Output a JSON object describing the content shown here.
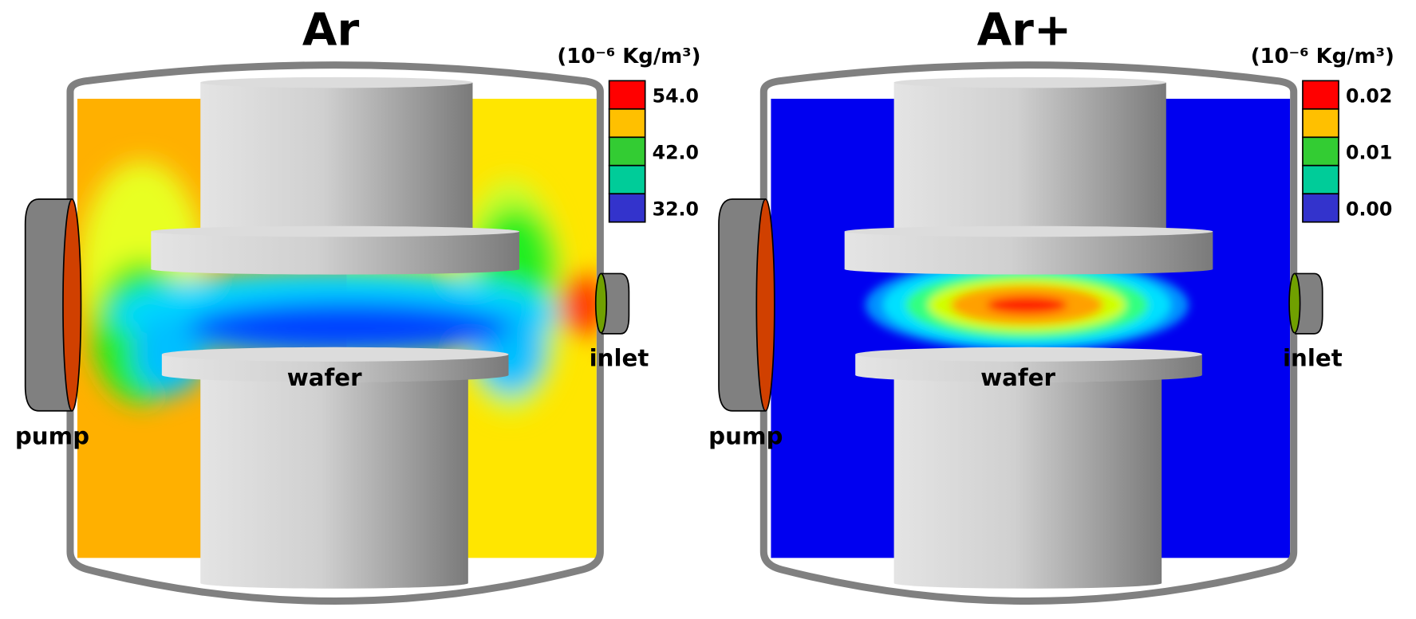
{
  "panels": [
    {
      "title": "Ar",
      "unit": "(10⁻⁶ Kg/m³)",
      "field": "Ar",
      "legend": {
        "colors": [
          "#ff0000",
          "#ffc000",
          "#33cc33",
          "#00cc99",
          "#3333cc"
        ],
        "labels": [
          "54.0",
          "42.0",
          "32.0"
        ]
      },
      "labels": {
        "pump": "pump",
        "inlet": "inlet",
        "wafer": "wafer"
      }
    },
    {
      "title": "Ar+",
      "unit": "(10⁻⁶ Kg/m³)",
      "field": "Ar+",
      "legend": {
        "colors": [
          "#ff0000",
          "#ffc000",
          "#33cc33",
          "#00cc99",
          "#3333cc"
        ],
        "labels": [
          "0.02",
          "0.01",
          "0.00"
        ]
      },
      "labels": {
        "pump": "pump",
        "inlet": "inlet",
        "wafer": "wafer"
      }
    }
  ]
}
